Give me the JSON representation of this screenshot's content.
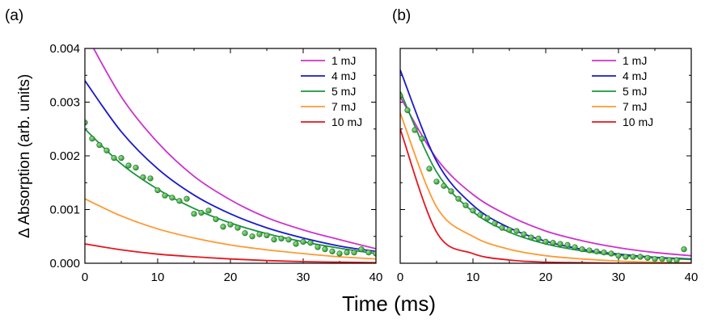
{
  "figure": {
    "xlabel": "Time (ms)",
    "ylabel": "∆ Absorption (arb. units)"
  },
  "chart_data": [
    {
      "type": "line",
      "panel": "(a)",
      "xlim": [
        0,
        40
      ],
      "ylim": [
        0,
        0.004
      ],
      "x_ticks": [
        "0",
        "10",
        "20",
        "30",
        "40"
      ],
      "y_ticks": [
        "0.000",
        "0.001",
        "0.002",
        "0.003",
        "0.004"
      ],
      "legend_position": "top-right",
      "series": [
        {
          "name": "1 mJ",
          "color": "#cc33cc",
          "x": [
            0,
            5,
            10,
            15,
            20,
            25,
            30,
            35,
            40
          ],
          "y": [
            0.0043,
            0.0031,
            0.00225,
            0.00162,
            0.00118,
            0.00085,
            0.00062,
            0.00044,
            0.00027
          ]
        },
        {
          "name": "4 mJ",
          "color": "#1a1acc",
          "x": [
            0,
            5,
            10,
            15,
            20,
            25,
            30,
            35,
            40
          ],
          "y": [
            0.0034,
            0.00245,
            0.00176,
            0.00127,
            0.00092,
            0.00066,
            0.00047,
            0.00032,
            0.00022
          ]
        },
        {
          "name": "5 mJ",
          "color": "#1a9440",
          "x": [
            0,
            5,
            10,
            15,
            20,
            25,
            30,
            35,
            40
          ],
          "y": [
            0.0025,
            0.00185,
            0.00138,
            0.00102,
            0.00075,
            0.00055,
            0.0004,
            0.00028,
            0.00018
          ]
        },
        {
          "name": "7 mJ",
          "color": "#ff9933",
          "x": [
            0,
            5,
            10,
            15,
            20,
            25,
            30,
            35,
            40
          ],
          "y": [
            0.0012,
            0.00088,
            0.00064,
            0.00047,
            0.00034,
            0.00025,
            0.00018,
            0.00012,
            8e-05
          ]
        },
        {
          "name": "10 mJ",
          "color": "#e6141e",
          "x": [
            0,
            5,
            10,
            15,
            20,
            25,
            30,
            35,
            40
          ],
          "y": [
            0.00036,
            0.00025,
            0.00017,
            0.00012,
            8e-05,
            5e-05,
            3e-05,
            2e-05,
            1e-05
          ]
        }
      ],
      "scatter": {
        "color": "#2f9a2f",
        "x": [
          0,
          1,
          2,
          3,
          4,
          5,
          6,
          7,
          8,
          9,
          10,
          11,
          12,
          13,
          14,
          15,
          16,
          17,
          18,
          19,
          20,
          21,
          22,
          23,
          24,
          25,
          26,
          27,
          28,
          29,
          30,
          31,
          32,
          33,
          34,
          35,
          36,
          37,
          38,
          39,
          40
        ],
        "y": [
          0.00262,
          0.00232,
          0.0022,
          0.0021,
          0.00196,
          0.00196,
          0.00182,
          0.00178,
          0.0016,
          0.00158,
          0.00136,
          0.00126,
          0.00122,
          0.00116,
          0.0012,
          0.00092,
          0.00094,
          0.00098,
          0.00082,
          0.00068,
          0.00072,
          0.00066,
          0.00056,
          0.0005,
          0.00054,
          0.00052,
          0.00044,
          0.00046,
          0.00044,
          0.00036,
          0.0004,
          0.00038,
          0.0003,
          0.00026,
          0.00022,
          0.00018,
          0.0002,
          0.0002,
          0.00026,
          0.0002,
          0.00018
        ]
      }
    },
    {
      "type": "line",
      "panel": "(b)",
      "xlim": [
        0,
        40
      ],
      "ylim": [
        0,
        0.004
      ],
      "x_ticks": [
        "0",
        "10",
        "20",
        "30",
        "40"
      ],
      "y_ticks": [],
      "legend_position": "top-right",
      "series": [
        {
          "name": "1 mJ",
          "color": "#cc33cc",
          "x": [
            0,
            5,
            10,
            15,
            20,
            25,
            30,
            35,
            40
          ],
          "y": [
            0.0031,
            0.00195,
            0.00128,
            0.00088,
            0.0006,
            0.00042,
            0.00029,
            0.0002,
            0.00014
          ]
        },
        {
          "name": "4 mJ",
          "color": "#1a1acc",
          "x": [
            0,
            5,
            10,
            15,
            20,
            25,
            30,
            35,
            40
          ],
          "y": [
            0.0036,
            0.0019,
            0.00108,
            0.00066,
            0.00041,
            0.00026,
            0.00017,
            0.00011,
            8e-05
          ]
        },
        {
          "name": "5 mJ",
          "color": "#1a9440",
          "x": [
            0,
            5,
            10,
            15,
            20,
            25,
            30,
            35,
            40
          ],
          "y": [
            0.0032,
            0.0017,
            0.00096,
            0.00058,
            0.00036,
            0.00023,
            0.00015,
            0.0001,
            7e-05
          ]
        },
        {
          "name": "7 mJ",
          "color": "#ff9933",
          "x": [
            0,
            5,
            10,
            15,
            20,
            25,
            30,
            35,
            40
          ],
          "y": [
            0.0028,
            0.00105,
            0.0005,
            0.00026,
            0.00014,
            8e-05,
            4e-05,
            2e-05,
            1e-05
          ]
        },
        {
          "name": "10 mJ",
          "color": "#e6141e",
          "x": [
            0,
            5,
            10,
            15,
            20,
            25,
            30,
            35,
            40
          ],
          "y": [
            0.0025,
            0.00058,
            0.00018,
            6e-05,
            2e-05,
            1e-05,
            0.0,
            0.0,
            0.0
          ]
        }
      ],
      "scatter": {
        "color": "#2f9a2f",
        "x": [
          0,
          1,
          2,
          3,
          4,
          5,
          6,
          7,
          8,
          9,
          10,
          11,
          12,
          13,
          14,
          15,
          16,
          17,
          18,
          19,
          20,
          21,
          22,
          23,
          24,
          25,
          26,
          27,
          28,
          29,
          30,
          31,
          32,
          33,
          34,
          35,
          36,
          37,
          38,
          39
        ],
        "y": [
          0.00312,
          0.00285,
          0.00248,
          0.00232,
          0.00176,
          0.00152,
          0.00144,
          0.00134,
          0.0012,
          0.00108,
          0.00098,
          0.0009,
          0.00084,
          0.00074,
          0.00066,
          0.00062,
          0.0006,
          0.00054,
          0.00048,
          0.00046,
          0.0004,
          0.00038,
          0.00036,
          0.00034,
          0.0003,
          0.00026,
          0.00024,
          0.00022,
          0.0002,
          0.00018,
          0.00014,
          0.00012,
          0.00012,
          0.00012,
          0.0001,
          8e-05,
          8e-05,
          6e-05,
          6e-05,
          0.00026
        ]
      }
    }
  ]
}
